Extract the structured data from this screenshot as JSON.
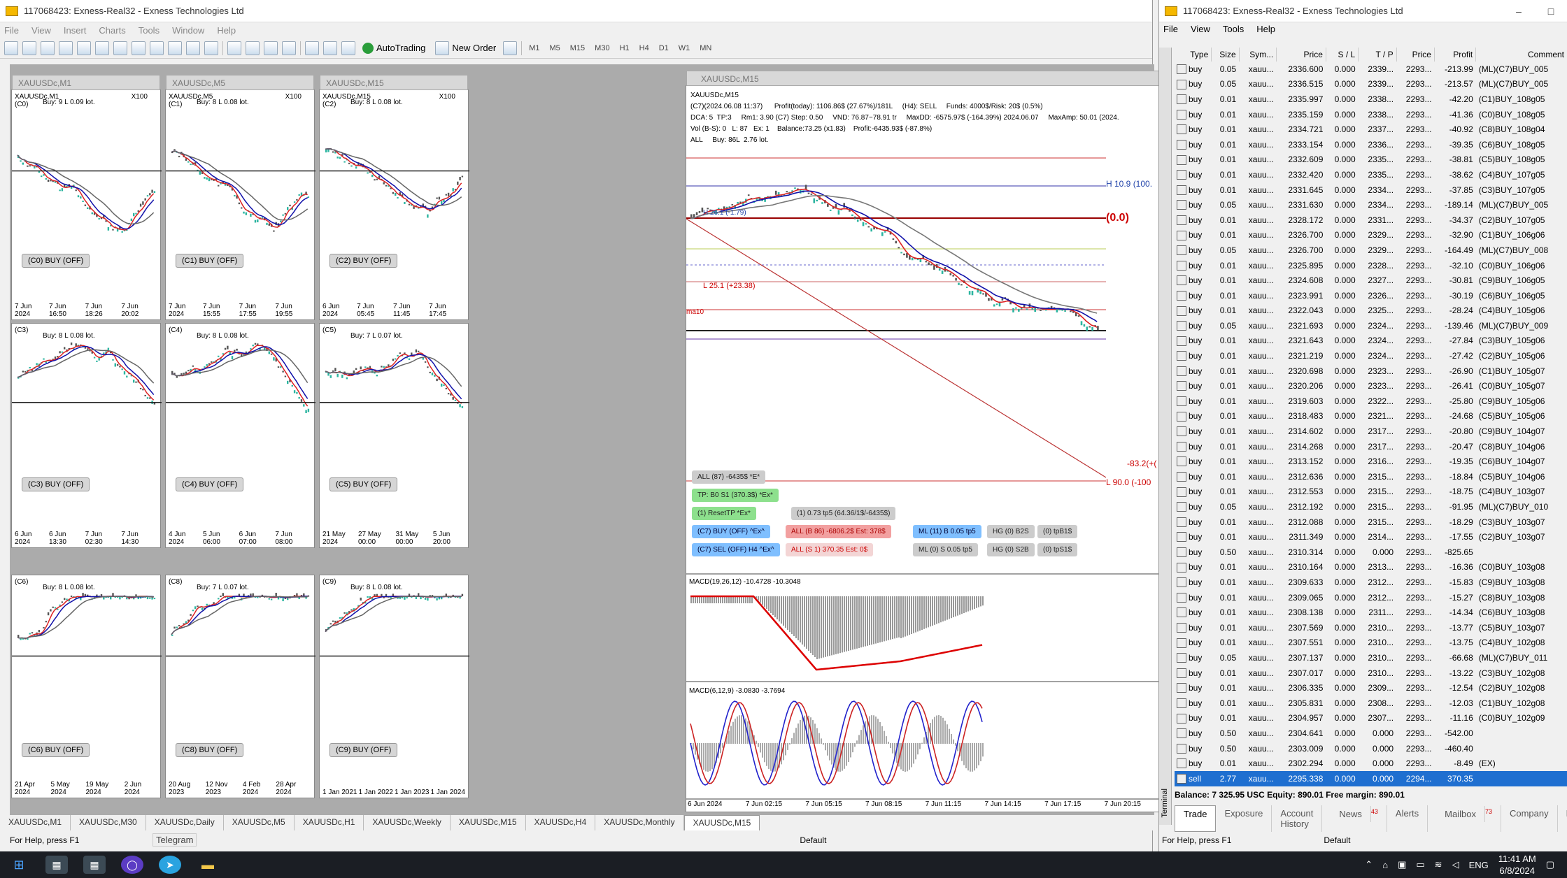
{
  "left_window": {
    "title": "117068423: Exness-Real32 - Exness Technologies Ltd",
    "menu": [
      "File",
      "View",
      "Insert",
      "Charts",
      "Tools",
      "Window",
      "Help"
    ],
    "toolbar": {
      "autotrading": "AutoTrading",
      "new_order": "New Order",
      "timeframes": [
        "M1",
        "M5",
        "M15",
        "M30",
        "H1",
        "H4",
        "D1",
        "W1",
        "MN"
      ]
    }
  },
  "mini_charts": [
    {
      "title": "XAUUSDc,M1",
      "sym": "XAUUSDc,M1",
      "id": "(C0)",
      "stat": "Buy: 9 L 0.09 lot.",
      "x100": "X100",
      "btn": "(C0) BUY (OFF)",
      "x": [
        "7 Jun 2024",
        "7 Jun 16:50",
        "7 Jun 18:26",
        "7 Jun 20:02"
      ]
    },
    {
      "title": "XAUUSDc,M5",
      "sym": "XAUUSDc,M5",
      "id": "(C1)",
      "stat": "Buy: 8 L 0.08 lot.",
      "x100": "X100",
      "btn": "(C1) BUY (OFF)",
      "x": [
        "7 Jun 2024",
        "7 Jun 15:55",
        "7 Jun 17:55",
        "7 Jun 19:55"
      ]
    },
    {
      "title": "XAUUSDc,M15",
      "sym": "XAUUSDc,M15",
      "id": "(C2)",
      "stat": "Buy: 8 L 0.08 lot.",
      "x100": "X100",
      "btn": "(C2) BUY (OFF)",
      "x": [
        "6 Jun 2024",
        "7 Jun 05:45",
        "7 Jun 11:45",
        "7 Jun 17:45"
      ]
    },
    {
      "title": "",
      "sym": "",
      "id": "(C3)",
      "stat": "Buy: 8 L 0.08 lot.",
      "x100": "",
      "btn": "(C3) BUY (OFF)",
      "x": [
        "6 Jun 2024",
        "6 Jun 13:30",
        "7 Jun 02:30",
        "7 Jun 14:30"
      ]
    },
    {
      "title": "",
      "sym": "",
      "id": "(C4)",
      "stat": "Buy: 8 L 0.08 lot.",
      "x100": "",
      "btn": "(C4) BUY (OFF)",
      "x": [
        "4 Jun 2024",
        "5 Jun 06:00",
        "6 Jun 07:00",
        "7 Jun 08:00"
      ]
    },
    {
      "title": "",
      "sym": "",
      "id": "(C5)",
      "stat": "Buy: 7 L 0.07 lot.",
      "x100": "",
      "btn": "(C5) BUY (OFF)",
      "x": [
        "21 May 2024",
        "27 May 00:00",
        "31 May 00:00",
        "5 Jun 20:00"
      ]
    },
    {
      "title": "",
      "sym": "",
      "id": "(C6)",
      "stat": "Buy: 8 L 0.08 lot.",
      "x100": "",
      "btn": "(C6) BUY (OFF)",
      "x": [
        "21 Apr 2024",
        "5 May 2024",
        "19 May 2024",
        "2 Jun 2024"
      ]
    },
    {
      "title": "",
      "sym": "",
      "id": "(C8)",
      "stat": "Buy: 7 L 0.07 lot.",
      "x100": "",
      "btn": "(C8) BUY (OFF)",
      "x": [
        "20 Aug 2023",
        "12 Nov 2023",
        "4 Feb 2024",
        "28 Apr 2024"
      ]
    },
    {
      "title": "",
      "sym": "",
      "id": "(C9)",
      "stat": "Buy: 8 L 0.08 lot.",
      "x100": "",
      "btn": "(C9) BUY (OFF)",
      "x": [
        "1 Jan 2021",
        "1 Jan 2022",
        "1 Jan 2023",
        "1 Jan 2024"
      ]
    }
  ],
  "big_chart": {
    "title": "XAUUSDc,M15",
    "info": "XAUUSDc,M15\n(C7)(2024.06.08 11:37)      Profit(today): 1106.86$ (27.67%)/181L     (H4): SELL     Funds: 4000$/Risk: 20$ (0.5%)\nDCA: 5  TP:3     Rm1: 3.90 (C7) Step: 0.50     VND: 76.87~78.91 tr     MaxDD: -6575.97$ (-164.39%) 2024.06.07     MaxAmp: 50.01 (2024.\nVol (B-S): 0   L: 87   Ex: 1    Balance:73.25 (x1.83)    Profit:-6435.93$ (-87.8%)\nALL     Buy: 86L  2.76 lot.",
    "levels": {
      "h": "H 10.9 (100.",
      "zero": "(0.0)",
      "h2": "H 26.1 (-1.79)",
      "l25": "L 25.1 (+23.38)",
      "ma": "ma10",
      "m83": "-83.2(+(",
      "l90": "L 90.0 (-100"
    },
    "pills": {
      "all": "ALL (87)  -6435$ *E*",
      "tp": "TP: B0 S1 (370.3$) *Ex*",
      "reset": "(1) ResetTP  *Ex*",
      "tp5": "(1) 0.73 tp5 (64.36/1$/-6435$)",
      "c7buy": "(C7) BUY (OFF) ^Ex^",
      "allb": "ALL (B 86) -6806.2$ Est: 378$",
      "ml11": "ML (11) B 0.05 tp5",
      "hgb2s": "HG (0) B2S",
      "tpb1": "(0) tpB1$",
      "c7sel": "(C7) SEL (OFF) H4 ^Ex^",
      "alls": "ALL (S 1)  370.35 Est: 0$",
      "ml0": "ML (0) S 0.05 tp5",
      "hgs2b": "HG (0) S2B",
      "tps1": "(0) tpS1$"
    },
    "macd1": "MACD(19,26,12) -10.4728 -10.3048",
    "macd2": "MACD(6,12,9) -3.0830 -3.7694",
    "x": [
      "6 Jun 2024",
      "7 Jun 02:15",
      "7 Jun 05:15",
      "7 Jun 08:15",
      "7 Jun 11:15",
      "7 Jun 14:15",
      "7 Jun 17:15",
      "7 Jun 20:15"
    ]
  },
  "tabs": [
    "XAUUSDc,M1",
    "XAUUSDc,M30",
    "XAUUSDc,Daily",
    "XAUUSDc,M5",
    "XAUUSDc,H1",
    "XAUUSDc,Weekly",
    "XAUUSDc,M15",
    "XAUUSDc,H4",
    "XAUUSDc,Monthly",
    "XAUUSDc,M15"
  ],
  "left_status": {
    "help": "For Help, press F1",
    "profile": "Default",
    "telegram": "Telegram"
  },
  "right_window": {
    "title": "117068423: Exness-Real32 - Exness Technologies Ltd",
    "menu": [
      "File",
      "View",
      "Tools",
      "Help"
    ],
    "columns": [
      "Type",
      "Size",
      "Sym...",
      "Price",
      "S / L",
      "T / P",
      "Price",
      "Profit",
      "Comment"
    ],
    "orders": [
      [
        "buy",
        "0.05",
        "xauu...",
        "2336.600",
        "0.000",
        "2339...",
        "2293...",
        "-213.99",
        "(ML)(C7)BUY_005"
      ],
      [
        "buy",
        "0.05",
        "xauu...",
        "2336.515",
        "0.000",
        "2339...",
        "2293...",
        "-213.57",
        "(ML)(C7)BUY_005"
      ],
      [
        "buy",
        "0.01",
        "xauu...",
        "2335.997",
        "0.000",
        "2338...",
        "2293...",
        "-42.20",
        "(C1)BUY_108g05"
      ],
      [
        "buy",
        "0.01",
        "xauu...",
        "2335.159",
        "0.000",
        "2338...",
        "2293...",
        "-41.36",
        "(C0)BUY_108g05"
      ],
      [
        "buy",
        "0.01",
        "xauu...",
        "2334.721",
        "0.000",
        "2337...",
        "2293...",
        "-40.92",
        "(C8)BUY_108g04"
      ],
      [
        "buy",
        "0.01",
        "xauu...",
        "2333.154",
        "0.000",
        "2336...",
        "2293...",
        "-39.35",
        "(C6)BUY_108g05"
      ],
      [
        "buy",
        "0.01",
        "xauu...",
        "2332.609",
        "0.000",
        "2335...",
        "2293...",
        "-38.81",
        "(C5)BUY_108g05"
      ],
      [
        "buy",
        "0.01",
        "xauu...",
        "2332.420",
        "0.000",
        "2335...",
        "2293...",
        "-38.62",
        "(C4)BUY_107g05"
      ],
      [
        "buy",
        "0.01",
        "xauu...",
        "2331.645",
        "0.000",
        "2334...",
        "2293...",
        "-37.85",
        "(C3)BUY_107g05"
      ],
      [
        "buy",
        "0.05",
        "xauu...",
        "2331.630",
        "0.000",
        "2334...",
        "2293...",
        "-189.14",
        "(ML)(C7)BUY_005"
      ],
      [
        "buy",
        "0.01",
        "xauu...",
        "2328.172",
        "0.000",
        "2331...",
        "2293...",
        "-34.37",
        "(C2)BUY_107g05"
      ],
      [
        "buy",
        "0.01",
        "xauu...",
        "2326.700",
        "0.000",
        "2329...",
        "2293...",
        "-32.90",
        "(C1)BUY_106g06"
      ],
      [
        "buy",
        "0.05",
        "xauu...",
        "2326.700",
        "0.000",
        "2329...",
        "2293...",
        "-164.49",
        "(ML)(C7)BUY_008"
      ],
      [
        "buy",
        "0.01",
        "xauu...",
        "2325.895",
        "0.000",
        "2328...",
        "2293...",
        "-32.10",
        "(C0)BUY_106g06"
      ],
      [
        "buy",
        "0.01",
        "xauu...",
        "2324.608",
        "0.000",
        "2327...",
        "2293...",
        "-30.81",
        "(C9)BUY_106g05"
      ],
      [
        "buy",
        "0.01",
        "xauu...",
        "2323.991",
        "0.000",
        "2326...",
        "2293...",
        "-30.19",
        "(C6)BUY_106g05"
      ],
      [
        "buy",
        "0.01",
        "xauu...",
        "2322.043",
        "0.000",
        "2325...",
        "2293...",
        "-28.24",
        "(C4)BUY_105g06"
      ],
      [
        "buy",
        "0.05",
        "xauu...",
        "2321.693",
        "0.000",
        "2324...",
        "2293...",
        "-139.46",
        "(ML)(C7)BUY_009"
      ],
      [
        "buy",
        "0.01",
        "xauu...",
        "2321.643",
        "0.000",
        "2324...",
        "2293...",
        "-27.84",
        "(C3)BUY_105g06"
      ],
      [
        "buy",
        "0.01",
        "xauu...",
        "2321.219",
        "0.000",
        "2324...",
        "2293...",
        "-27.42",
        "(C2)BUY_105g06"
      ],
      [
        "buy",
        "0.01",
        "xauu...",
        "2320.698",
        "0.000",
        "2323...",
        "2293...",
        "-26.90",
        "(C1)BUY_105g07"
      ],
      [
        "buy",
        "0.01",
        "xauu...",
        "2320.206",
        "0.000",
        "2323...",
        "2293...",
        "-26.41",
        "(C0)BUY_105g07"
      ],
      [
        "buy",
        "0.01",
        "xauu...",
        "2319.603",
        "0.000",
        "2322...",
        "2293...",
        "-25.80",
        "(C9)BUY_105g06"
      ],
      [
        "buy",
        "0.01",
        "xauu...",
        "2318.483",
        "0.000",
        "2321...",
        "2293...",
        "-24.68",
        "(C5)BUY_105g06"
      ],
      [
        "buy",
        "0.01",
        "xauu...",
        "2314.602",
        "0.000",
        "2317...",
        "2293...",
        "-20.80",
        "(C9)BUY_104g07"
      ],
      [
        "buy",
        "0.01",
        "xauu...",
        "2314.268",
        "0.000",
        "2317...",
        "2293...",
        "-20.47",
        "(C8)BUY_104g06"
      ],
      [
        "buy",
        "0.01",
        "xauu...",
        "2313.152",
        "0.000",
        "2316...",
        "2293...",
        "-19.35",
        "(C6)BUY_104g07"
      ],
      [
        "buy",
        "0.01",
        "xauu...",
        "2312.636",
        "0.000",
        "2315...",
        "2293...",
        "-18.84",
        "(C5)BUY_104g06"
      ],
      [
        "buy",
        "0.01",
        "xauu...",
        "2312.553",
        "0.000",
        "2315...",
        "2293...",
        "-18.75",
        "(C4)BUY_103g07"
      ],
      [
        "buy",
        "0.05",
        "xauu...",
        "2312.192",
        "0.000",
        "2315...",
        "2293...",
        "-91.95",
        "(ML)(C7)BUY_010"
      ],
      [
        "buy",
        "0.01",
        "xauu...",
        "2312.088",
        "0.000",
        "2315...",
        "2293...",
        "-18.29",
        "(C3)BUY_103g07"
      ],
      [
        "buy",
        "0.01",
        "xauu...",
        "2311.349",
        "0.000",
        "2314...",
        "2293...",
        "-17.55",
        "(C2)BUY_103g07"
      ],
      [
        "buy",
        "0.50",
        "xauu...",
        "2310.314",
        "0.000",
        "0.000",
        "2293...",
        "-825.65",
        ""
      ],
      [
        "buy",
        "0.01",
        "xauu...",
        "2310.164",
        "0.000",
        "2313...",
        "2293...",
        "-16.36",
        "(C0)BUY_103g08"
      ],
      [
        "buy",
        "0.01",
        "xauu...",
        "2309.633",
        "0.000",
        "2312...",
        "2293...",
        "-15.83",
        "(C9)BUY_103g08"
      ],
      [
        "buy",
        "0.01",
        "xauu...",
        "2309.065",
        "0.000",
        "2312...",
        "2293...",
        "-15.27",
        "(C8)BUY_103g08"
      ],
      [
        "buy",
        "0.01",
        "xauu...",
        "2308.138",
        "0.000",
        "2311...",
        "2293...",
        "-14.34",
        "(C6)BUY_103g08"
      ],
      [
        "buy",
        "0.01",
        "xauu...",
        "2307.569",
        "0.000",
        "2310...",
        "2293...",
        "-13.77",
        "(C5)BUY_103g07"
      ],
      [
        "buy",
        "0.01",
        "xauu...",
        "2307.551",
        "0.000",
        "2310...",
        "2293...",
        "-13.75",
        "(C4)BUY_102g08"
      ],
      [
        "buy",
        "0.05",
        "xauu...",
        "2307.137",
        "0.000",
        "2310...",
        "2293...",
        "-66.68",
        "(ML)(C7)BUY_011"
      ],
      [
        "buy",
        "0.01",
        "xauu...",
        "2307.017",
        "0.000",
        "2310...",
        "2293...",
        "-13.22",
        "(C3)BUY_102g08"
      ],
      [
        "buy",
        "0.01",
        "xauu...",
        "2306.335",
        "0.000",
        "2309...",
        "2293...",
        "-12.54",
        "(C2)BUY_102g08"
      ],
      [
        "buy",
        "0.01",
        "xauu...",
        "2305.831",
        "0.000",
        "2308...",
        "2293...",
        "-12.03",
        "(C1)BUY_102g08"
      ],
      [
        "buy",
        "0.01",
        "xauu...",
        "2304.957",
        "0.000",
        "2307...",
        "2293...",
        "-11.16",
        "(C0)BUY_102g09"
      ],
      [
        "buy",
        "0.50",
        "xauu...",
        "2304.641",
        "0.000",
        "0.000",
        "2293...",
        "-542.00",
        ""
      ],
      [
        "buy",
        "0.50",
        "xauu...",
        "2303.009",
        "0.000",
        "0.000",
        "2293...",
        "-460.40",
        ""
      ],
      [
        "buy",
        "0.01",
        "xauu...",
        "2302.294",
        "0.000",
        "0.000",
        "2293...",
        "-8.49",
        "(EX)"
      ],
      [
        "sell",
        "2.77",
        "xauu...",
        "2295.338",
        "0.000",
        "0.000",
        "2294...",
        "370.35",
        ""
      ]
    ],
    "balance": "Balance: 7 325.95 USC  Equity: 890.01  Free margin: 890.01",
    "terminal_label": "Terminal",
    "tabs": [
      "Trade",
      "Exposure",
      "Account History",
      "News",
      "Alerts",
      "Mailbox",
      "Company",
      "Ma"
    ],
    "news_count": "43",
    "mailbox_count": "73",
    "status": {
      "help": "For Help, press F1",
      "profile": "Default"
    }
  },
  "taskbar": {
    "lang": "ENG",
    "time": "11:41 AM",
    "date": "6/8/2024"
  }
}
